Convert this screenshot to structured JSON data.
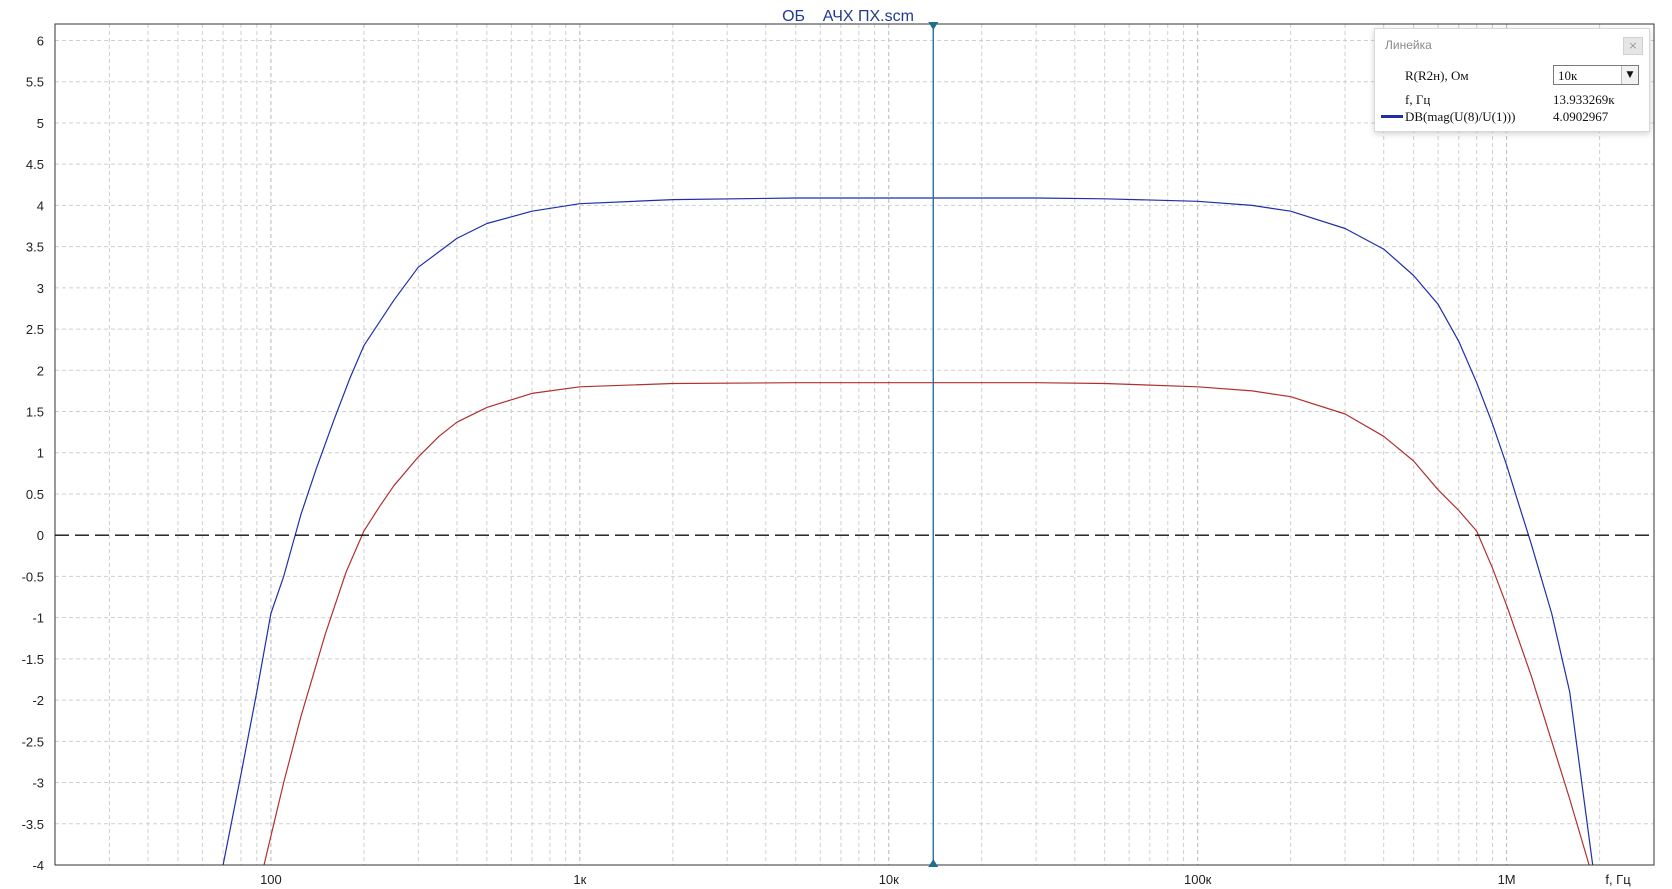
{
  "chart_data": {
    "type": "line",
    "title": "ОБ    АЧХ ПХ.scm",
    "xscale": "log",
    "xlim": [
      20,
      3000000
    ],
    "ylim": [
      -4,
      6.2
    ],
    "xlabel": "f, Гц",
    "ylabel": "",
    "yticks": [
      "6",
      "5.5",
      "5",
      "4.5",
      "4",
      "3.5",
      "3",
      "2.5",
      "2",
      "1.5",
      "1",
      "0.5",
      "0",
      "-0.5",
      "-1",
      "-1.5",
      "-2",
      "-2.5",
      "-3",
      "-3.5",
      "-4"
    ],
    "xticks": [
      {
        "value": 100,
        "label": "100"
      },
      {
        "value": 1000,
        "label": "1к"
      },
      {
        "value": 10000,
        "label": "10к"
      },
      {
        "value": 100000,
        "label": "100к"
      },
      {
        "value": 1000000,
        "label": "1М"
      }
    ],
    "grid": true,
    "zero_line": "dashed",
    "cursor_x": 13933.269,
    "series": [
      {
        "name": "DB(mag(U(8)/U(1)))",
        "color": "#1f2fa8",
        "x": [
          70,
          80,
          90,
          100,
          110,
          125,
          140,
          160,
          180,
          200,
          250,
          300,
          400,
          500,
          700,
          1000,
          2000,
          5000,
          10000,
          30000,
          50000,
          100000,
          150000,
          200000,
          300000,
          400000,
          500000,
          600000,
          700000,
          800000,
          900000,
          1000000,
          1100000,
          1200000,
          1400000,
          1600000,
          1900000
        ],
        "y": [
          -4.0,
          -2.9,
          -1.9,
          -0.95,
          -0.5,
          0.25,
          0.8,
          1.4,
          1.9,
          2.3,
          2.85,
          3.25,
          3.6,
          3.78,
          3.93,
          4.02,
          4.07,
          4.09,
          4.09,
          4.09,
          4.08,
          4.05,
          4.0,
          3.93,
          3.72,
          3.47,
          3.15,
          2.8,
          2.35,
          1.85,
          1.35,
          0.85,
          0.35,
          -0.1,
          -0.95,
          -1.9,
          -4.0
        ]
      },
      {
        "name": "",
        "color": "#b03030",
        "x": [
          95,
          110,
          125,
          150,
          175,
          200,
          225,
          250,
          300,
          350,
          400,
          500,
          700,
          1000,
          2000,
          5000,
          10000,
          30000,
          50000,
          100000,
          150000,
          200000,
          300000,
          400000,
          500000,
          600000,
          700000,
          800000,
          900000,
          1000000,
          1200000,
          1400000,
          1600000,
          1850000
        ],
        "y": [
          -4.0,
          -3.0,
          -2.2,
          -1.2,
          -0.45,
          0.05,
          0.35,
          0.6,
          0.95,
          1.2,
          1.37,
          1.55,
          1.72,
          1.8,
          1.84,
          1.85,
          1.85,
          1.85,
          1.84,
          1.8,
          1.75,
          1.68,
          1.47,
          1.2,
          0.9,
          0.55,
          0.3,
          0.05,
          -0.4,
          -0.85,
          -1.7,
          -2.5,
          -3.2,
          -4.0
        ]
      }
    ]
  },
  "ruler": {
    "title": "Линейка",
    "close_label": "×",
    "param_label": "R(R2н), Ом",
    "param_value": "10к",
    "freq_label": "f, Гц",
    "freq_value": "13.933269к",
    "series_label": "DB(mag(U(8)/U(1)))",
    "series_value": "4.0902967",
    "series_color": "#1f2fa8"
  }
}
